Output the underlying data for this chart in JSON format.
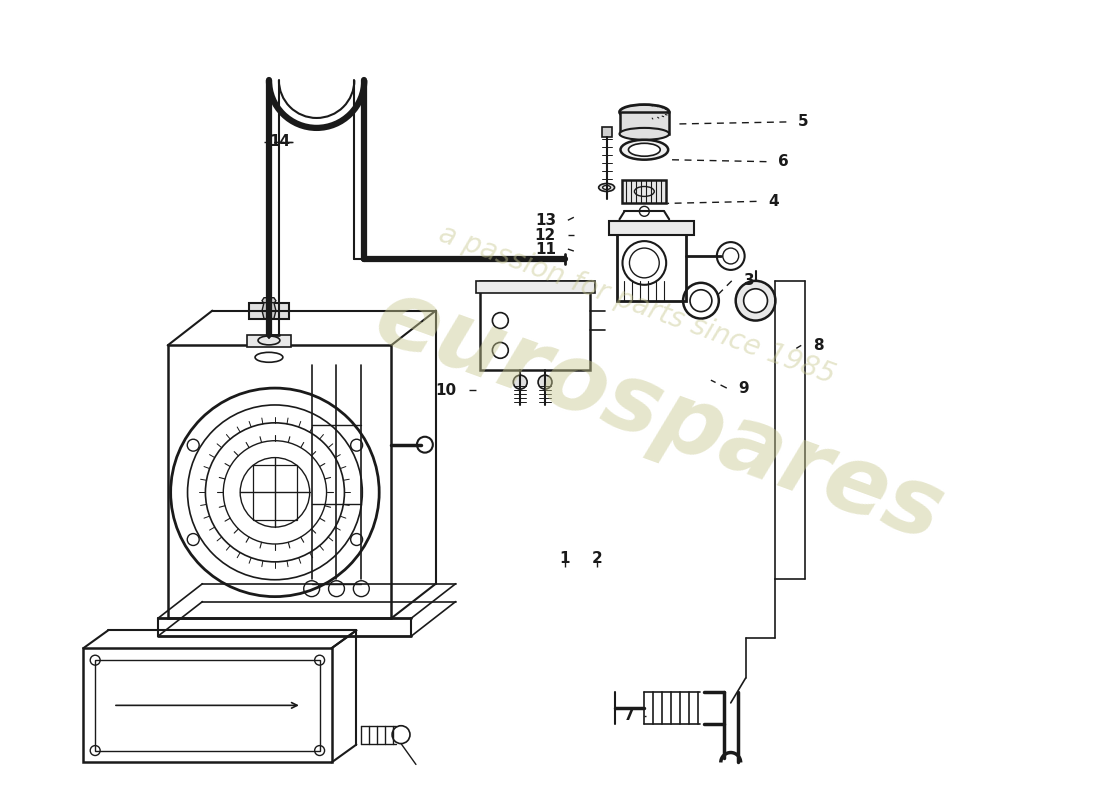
{
  "bg_color": "#ffffff",
  "line_color": "#1a1a1a",
  "label_color": "#1a1a1a",
  "watermark_text1": "eurospares",
  "watermark_text2": "a passion for parts since 1985",
  "watermark_color1": "#c8c890",
  "watermark_color2": "#c8c890",
  "figsize": [
    11.0,
    8.0
  ],
  "dpi": 100
}
